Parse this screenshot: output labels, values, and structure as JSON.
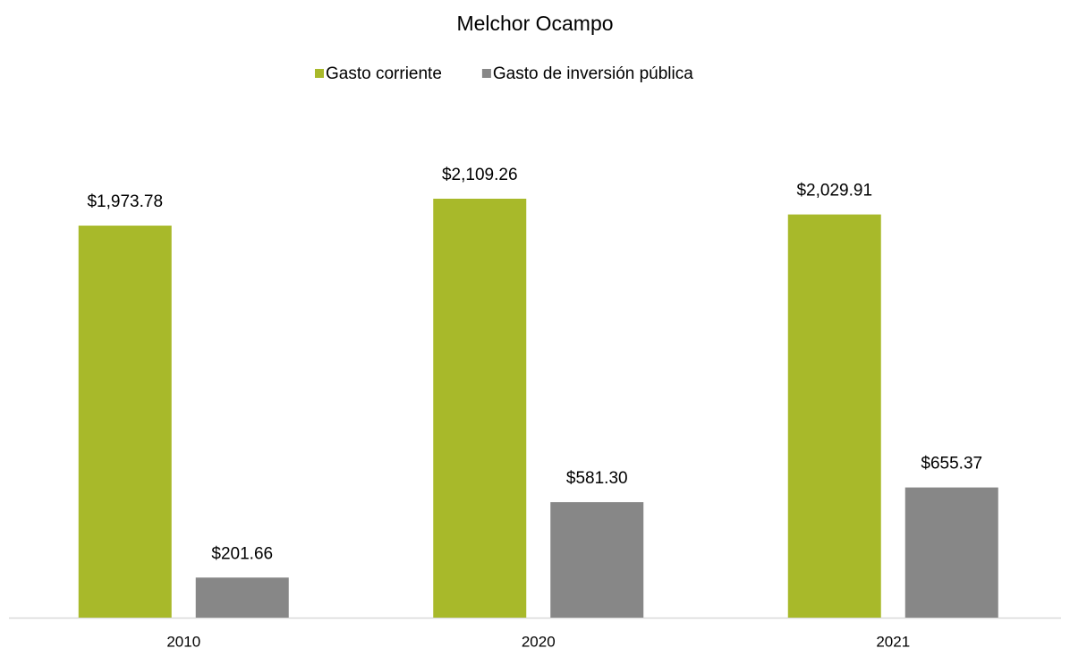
{
  "chart_data": {
    "type": "bar",
    "title": "Melchor Ocampo",
    "categories": [
      "2010",
      "2020",
      "2021"
    ],
    "series": [
      {
        "name": "Gasto corriente",
        "color": "#a8b92a",
        "values": [
          1973.78,
          2109.26,
          2029.91
        ],
        "value_labels": [
          "$1,973.78",
          "$2,109.26",
          "$2,029.91"
        ]
      },
      {
        "name": "Gasto de inversión pública",
        "color": "#878787",
        "values": [
          201.66,
          581.3,
          655.37
        ],
        "value_labels": [
          "$201.66",
          "$581.30",
          "$655.37"
        ]
      }
    ],
    "legend": "top"
  }
}
